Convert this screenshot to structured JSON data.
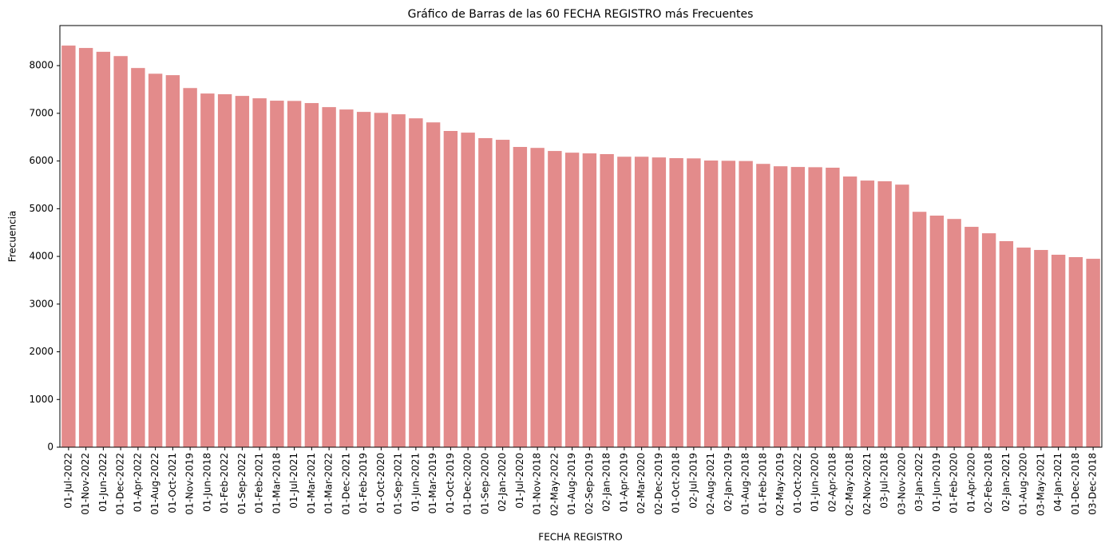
{
  "chart_data": {
    "type": "bar",
    "title": "Gráfico de Barras de las 60 FECHA REGISTRO más Frecuentes",
    "x_label": "FECHA REGISTRO",
    "y_label": "Frecuencia",
    "color": "#e38b8b",
    "categories": [
      "01-Jul-2022",
      "01-Nov-2022",
      "01-Jun-2022",
      "01-Dec-2022",
      "01-Apr-2022",
      "01-Aug-2022",
      "01-Oct-2021",
      "01-Nov-2019",
      "01-Jun-2018",
      "01-Feb-2022",
      "01-Sep-2022",
      "01-Feb-2021",
      "01-Mar-2018",
      "01-Jul-2021",
      "01-Mar-2021",
      "01-Mar-2022",
      "01-Dec-2021",
      "01-Feb-2019",
      "01-Oct-2020",
      "01-Sep-2021",
      "01-Jun-2021",
      "01-Mar-2019",
      "01-Oct-2019",
      "01-Dec-2020",
      "01-Sep-2020",
      "02-Jan-2020",
      "01-Jul-2020",
      "01-Nov-2018",
      "02-May-2022",
      "01-Aug-2019",
      "02-Sep-2019",
      "02-Jan-2018",
      "01-Apr-2019",
      "02-Mar-2020",
      "02-Dec-2019",
      "01-Oct-2018",
      "02-Jul-2019",
      "02-Aug-2021",
      "02-Jan-2019",
      "01-Aug-2018",
      "01-Feb-2018",
      "02-May-2019",
      "01-Oct-2022",
      "01-Jun-2020",
      "02-Apr-2018",
      "02-May-2018",
      "02-Nov-2021",
      "03-Jul-2018",
      "03-Nov-2020",
      "03-Jan-2022",
      "01-Jun-2019",
      "01-Feb-2020",
      "01-Apr-2020",
      "02-Feb-2018",
      "02-Jan-2021",
      "01-Aug-2020",
      "03-May-2021",
      "04-Jan-2021",
      "01-Dec-2018",
      "03-Dec-2018"
    ],
    "values": [
      8420,
      8370,
      8290,
      8200,
      7950,
      7830,
      7800,
      7530,
      7415,
      7400,
      7365,
      7315,
      7265,
      7260,
      7215,
      7130,
      7080,
      7030,
      7010,
      6980,
      6895,
      6810,
      6630,
      6595,
      6480,
      6445,
      6295,
      6275,
      6210,
      6175,
      6160,
      6145,
      6090,
      6090,
      6075,
      6060,
      6055,
      6010,
      6005,
      6000,
      5940,
      5890,
      5875,
      5870,
      5860,
      5675,
      5590,
      5575,
      5505,
      4935,
      4855,
      4785,
      4620,
      4485,
      4320,
      4185,
      4135,
      4035,
      3985,
      3950
    ],
    "ylim": [
      0,
      8840
    ],
    "yticks": [
      0,
      1000,
      2000,
      3000,
      4000,
      5000,
      6000,
      7000,
      8000
    ]
  }
}
